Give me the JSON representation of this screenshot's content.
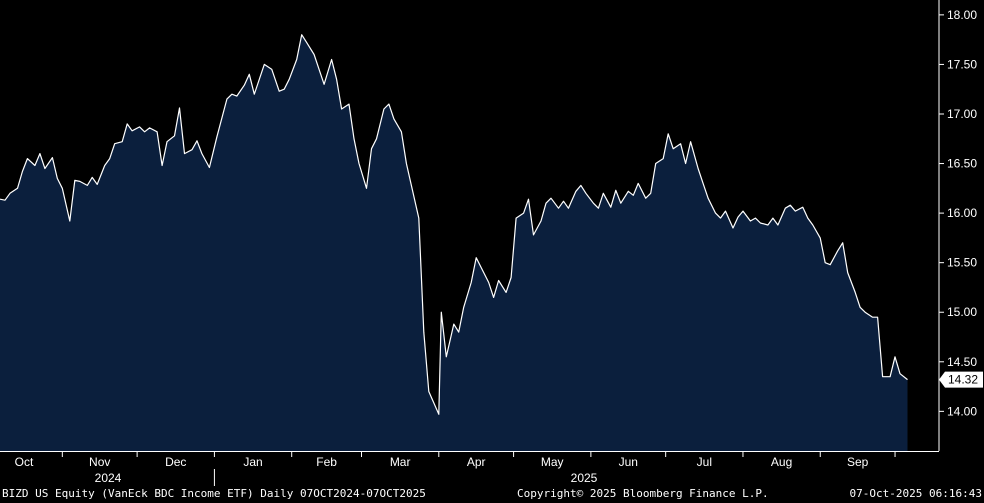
{
  "chart_data": {
    "type": "area",
    "ticker": "BIZD US Equity",
    "y_ticks": [
      "18.00",
      "17.50",
      "17.00",
      "16.50",
      "16.00",
      "15.50",
      "15.00",
      "14.50",
      "14.00"
    ],
    "y_range": [
      13.6,
      18.15
    ],
    "last_value": "14.32",
    "x_month_labels": [
      "Oct",
      "Nov",
      "Dec",
      "Jan",
      "Feb",
      "Mar",
      "Apr",
      "May",
      "Jun",
      "Jul",
      "Aug",
      "Sep"
    ],
    "x_year_labels": [
      "2024",
      "2025"
    ],
    "x_start": "2024-10-07",
    "x_end": "2025-10-07",
    "series": [
      {
        "values": [
          [
            "2024-10-07",
            16.14
          ],
          [
            "2024-10-09",
            16.13
          ],
          [
            "2024-10-11",
            16.2
          ],
          [
            "2024-10-14",
            16.25
          ],
          [
            "2024-10-16",
            16.42
          ],
          [
            "2024-10-18",
            16.55
          ],
          [
            "2024-10-21",
            16.48
          ],
          [
            "2024-10-23",
            16.6
          ],
          [
            "2024-10-25",
            16.45
          ],
          [
            "2024-10-28",
            16.56
          ],
          [
            "2024-10-30",
            16.35
          ],
          [
            "2024-11-01",
            16.25
          ],
          [
            "2024-11-04",
            15.92
          ],
          [
            "2024-11-06",
            16.33
          ],
          [
            "2024-11-08",
            16.32
          ],
          [
            "2024-11-11",
            16.28
          ],
          [
            "2024-11-13",
            16.36
          ],
          [
            "2024-11-15",
            16.29
          ],
          [
            "2024-11-18",
            16.48
          ],
          [
            "2024-11-20",
            16.55
          ],
          [
            "2024-11-22",
            16.7
          ],
          [
            "2024-11-25",
            16.72
          ],
          [
            "2024-11-27",
            16.9
          ],
          [
            "2024-11-29",
            16.83
          ],
          [
            "2024-12-02",
            16.87
          ],
          [
            "2024-12-04",
            16.82
          ],
          [
            "2024-12-06",
            16.86
          ],
          [
            "2024-12-09",
            16.82
          ],
          [
            "2024-12-11",
            16.48
          ],
          [
            "2024-12-13",
            16.72
          ],
          [
            "2024-12-16",
            16.78
          ],
          [
            "2024-12-18",
            17.06
          ],
          [
            "2024-12-20",
            16.6
          ],
          [
            "2024-12-23",
            16.64
          ],
          [
            "2024-12-25",
            16.73
          ],
          [
            "2024-12-27",
            16.6
          ],
          [
            "2024-12-30",
            16.46
          ],
          [
            "2025-01-02",
            16.77
          ],
          [
            "2025-01-06",
            17.15
          ],
          [
            "2025-01-08",
            17.2
          ],
          [
            "2025-01-10",
            17.18
          ],
          [
            "2025-01-13",
            17.29
          ],
          [
            "2025-01-15",
            17.4
          ],
          [
            "2025-01-17",
            17.2
          ],
          [
            "2025-01-21",
            17.5
          ],
          [
            "2025-01-24",
            17.45
          ],
          [
            "2025-01-27",
            17.23
          ],
          [
            "2025-01-29",
            17.25
          ],
          [
            "2025-01-31",
            17.35
          ],
          [
            "2025-02-03",
            17.55
          ],
          [
            "2025-02-05",
            17.8
          ],
          [
            "2025-02-07",
            17.72
          ],
          [
            "2025-02-10",
            17.6
          ],
          [
            "2025-02-12",
            17.45
          ],
          [
            "2025-02-14",
            17.3
          ],
          [
            "2025-02-17",
            17.55
          ],
          [
            "2025-02-19",
            17.35
          ],
          [
            "2025-02-21",
            17.05
          ],
          [
            "2025-02-24",
            17.1
          ],
          [
            "2025-02-26",
            16.75
          ],
          [
            "2025-02-28",
            16.5
          ],
          [
            "2025-03-03",
            16.25
          ],
          [
            "2025-03-05",
            16.65
          ],
          [
            "2025-03-07",
            16.75
          ],
          [
            "2025-03-10",
            17.05
          ],
          [
            "2025-03-12",
            17.1
          ],
          [
            "2025-03-14",
            16.95
          ],
          [
            "2025-03-17",
            16.82
          ],
          [
            "2025-03-19",
            16.5
          ],
          [
            "2025-03-24",
            15.95
          ],
          [
            "2025-03-26",
            14.8
          ],
          [
            "2025-03-28",
            14.2
          ],
          [
            "2025-04-01",
            13.97
          ],
          [
            "2025-04-02",
            15.0
          ],
          [
            "2025-04-04",
            14.55
          ],
          [
            "2025-04-07",
            14.88
          ],
          [
            "2025-04-09",
            14.8
          ],
          [
            "2025-04-11",
            15.05
          ],
          [
            "2025-04-14",
            15.3
          ],
          [
            "2025-04-16",
            15.55
          ],
          [
            "2025-04-18",
            15.45
          ],
          [
            "2025-04-21",
            15.3
          ],
          [
            "2025-04-23",
            15.15
          ],
          [
            "2025-04-25",
            15.32
          ],
          [
            "2025-04-28",
            15.2
          ],
          [
            "2025-04-30",
            15.35
          ],
          [
            "2025-05-02",
            15.95
          ],
          [
            "2025-05-05",
            16.0
          ],
          [
            "2025-05-07",
            16.14
          ],
          [
            "2025-05-09",
            15.78
          ],
          [
            "2025-05-12",
            15.92
          ],
          [
            "2025-05-14",
            16.1
          ],
          [
            "2025-05-16",
            16.15
          ],
          [
            "2025-05-19",
            16.05
          ],
          [
            "2025-05-21",
            16.12
          ],
          [
            "2025-05-23",
            16.05
          ],
          [
            "2025-05-26",
            16.22
          ],
          [
            "2025-05-28",
            16.28
          ],
          [
            "2025-05-30",
            16.2
          ],
          [
            "2025-06-02",
            16.1
          ],
          [
            "2025-06-04",
            16.05
          ],
          [
            "2025-06-06",
            16.2
          ],
          [
            "2025-06-09",
            16.06
          ],
          [
            "2025-06-11",
            16.23
          ],
          [
            "2025-06-13",
            16.1
          ],
          [
            "2025-06-16",
            16.22
          ],
          [
            "2025-06-18",
            16.18
          ],
          [
            "2025-06-20",
            16.3
          ],
          [
            "2025-06-23",
            16.15
          ],
          [
            "2025-06-25",
            16.2
          ],
          [
            "2025-06-27",
            16.5
          ],
          [
            "2025-06-30",
            16.55
          ],
          [
            "2025-07-02",
            16.8
          ],
          [
            "2025-07-04",
            16.65
          ],
          [
            "2025-07-07",
            16.7
          ],
          [
            "2025-07-09",
            16.5
          ],
          [
            "2025-07-11",
            16.72
          ],
          [
            "2025-07-14",
            16.45
          ],
          [
            "2025-07-16",
            16.3
          ],
          [
            "2025-07-18",
            16.15
          ],
          [
            "2025-07-21",
            16.0
          ],
          [
            "2025-07-23",
            15.95
          ],
          [
            "2025-07-25",
            16.02
          ],
          [
            "2025-07-28",
            15.85
          ],
          [
            "2025-07-30",
            15.96
          ],
          [
            "2025-08-01",
            16.02
          ],
          [
            "2025-08-04",
            15.92
          ],
          [
            "2025-08-06",
            15.95
          ],
          [
            "2025-08-08",
            15.9
          ],
          [
            "2025-08-11",
            15.88
          ],
          [
            "2025-08-13",
            15.95
          ],
          [
            "2025-08-15",
            15.88
          ],
          [
            "2025-08-18",
            16.05
          ],
          [
            "2025-08-20",
            16.08
          ],
          [
            "2025-08-22",
            16.02
          ],
          [
            "2025-08-25",
            16.06
          ],
          [
            "2025-08-27",
            15.95
          ],
          [
            "2025-08-29",
            15.88
          ],
          [
            "2025-09-01",
            15.75
          ],
          [
            "2025-09-03",
            15.5
          ],
          [
            "2025-09-05",
            15.48
          ],
          [
            "2025-09-08",
            15.62
          ],
          [
            "2025-09-10",
            15.7
          ],
          [
            "2025-09-12",
            15.4
          ],
          [
            "2025-09-15",
            15.2
          ],
          [
            "2025-09-17",
            15.05
          ],
          [
            "2025-09-19",
            15.0
          ],
          [
            "2025-09-22",
            14.95
          ],
          [
            "2025-09-24",
            14.95
          ],
          [
            "2025-09-26",
            14.35
          ],
          [
            "2025-09-29",
            14.35
          ],
          [
            "2025-10-01",
            14.55
          ],
          [
            "2025-10-03",
            14.38
          ],
          [
            "2025-10-06",
            14.32
          ]
        ]
      }
    ]
  },
  "footer": {
    "left": "BIZD US Equity (VanEck BDC Income ETF) Daily 07OCT2024-07OCT2025",
    "middle": "Copyright© 2025 Bloomberg Finance L.P.",
    "right": "07-Oct-2025 06:16:43"
  },
  "colors": {
    "background": "#000000",
    "area_fill": "#0b1f3d",
    "line": "#ffffff",
    "axis": "#ffffff",
    "last_value_bg": "#ffffff",
    "last_value_text": "#000000"
  }
}
